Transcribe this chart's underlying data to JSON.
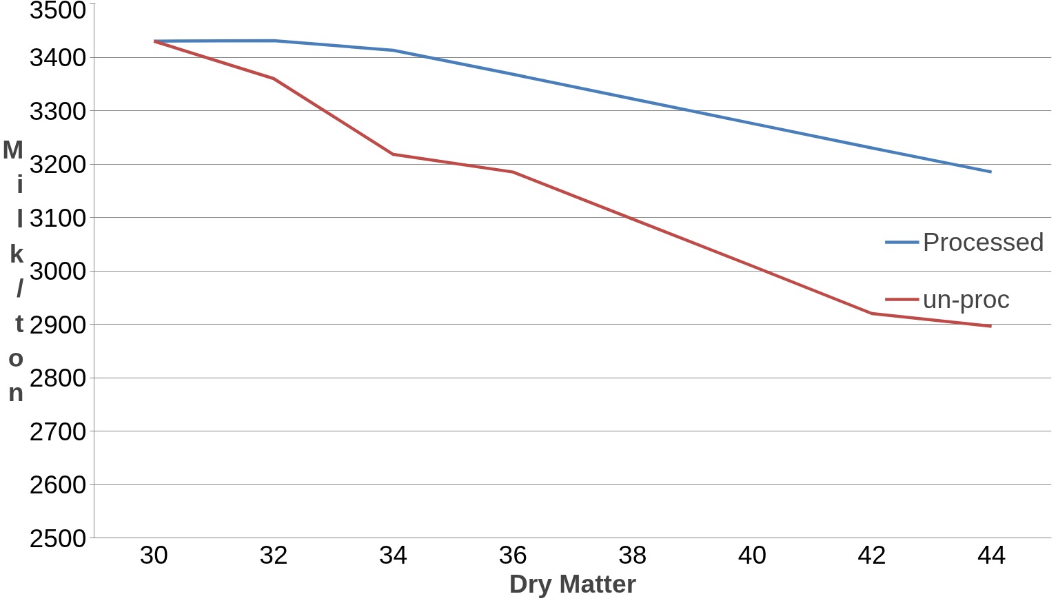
{
  "chart_data": {
    "type": "line",
    "xlabel": "Dry Matter",
    "ylabel": "Milk/ton",
    "categories": [
      "30",
      "32",
      "34",
      "36",
      "38",
      "40",
      "42",
      "44"
    ],
    "series": [
      {
        "name": "Processed",
        "color": "#4a7ebb",
        "values": [
          3430,
          3431,
          3413,
          3368,
          3322,
          3276,
          3230,
          3185
        ]
      },
      {
        "name": "un-proc",
        "color": "#be4b48",
        "values": [
          3430,
          3360,
          3218,
          3185,
          3097,
          3009,
          2920,
          2896
        ]
      }
    ],
    "ylim": [
      2500,
      3500
    ],
    "yticks": [
      2500,
      2600,
      2700,
      2800,
      2900,
      3000,
      3100,
      3200,
      3300,
      3400,
      3500
    ],
    "grid": "y",
    "legend": "right",
    "marker": "none",
    "line_style": "solid"
  }
}
